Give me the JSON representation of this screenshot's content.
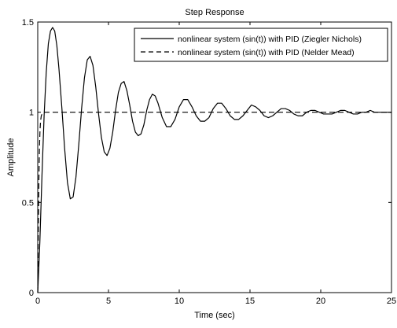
{
  "chart_data": {
    "type": "line",
    "title": "Step Response",
    "xlabel": "Time (sec)",
    "ylabel": "Amplitude",
    "xlim": [
      0,
      25
    ],
    "ylim": [
      0,
      1.5
    ],
    "xticks": [
      0,
      5,
      10,
      15,
      20,
      25
    ],
    "yticks": [
      0,
      0.5,
      1,
      1.5
    ],
    "xtick_labels": [
      "0",
      "5",
      "10",
      "15",
      "20",
      "25"
    ],
    "ytick_labels": [
      "0",
      "0.5",
      "1",
      "1.5"
    ],
    "grid": false,
    "legend_position": "top-right",
    "series": [
      {
        "name": "nonlinear system (sin(t)) with PID (Ziegler Nichols)",
        "line_style": "solid",
        "color": "#000000",
        "x": [
          0,
          0.15,
          0.3,
          0.45,
          0.6,
          0.75,
          0.9,
          1.05,
          1.2,
          1.35,
          1.5,
          1.7,
          1.9,
          2.1,
          2.3,
          2.5,
          2.7,
          2.9,
          3.1,
          3.3,
          3.5,
          3.7,
          3.9,
          4.1,
          4.3,
          4.5,
          4.7,
          4.9,
          5.1,
          5.3,
          5.5,
          5.7,
          5.9,
          6.1,
          6.3,
          6.5,
          6.7,
          6.9,
          7.1,
          7.3,
          7.5,
          7.7,
          7.9,
          8.1,
          8.3,
          8.5,
          8.8,
          9.1,
          9.4,
          9.7,
          10.0,
          10.3,
          10.6,
          10.9,
          11.2,
          11.5,
          11.8,
          12.1,
          12.4,
          12.7,
          13.0,
          13.3,
          13.6,
          13.9,
          14.2,
          14.5,
          14.8,
          15.1,
          15.4,
          15.7,
          16.0,
          16.3,
          16.6,
          16.9,
          17.2,
          17.5,
          17.8,
          18.1,
          18.4,
          18.7,
          19.0,
          19.3,
          19.6,
          19.9,
          20.2,
          20.5,
          20.8,
          21.1,
          21.4,
          21.7,
          22.0,
          22.3,
          22.6,
          22.9,
          23.2,
          23.5,
          23.8,
          24.1,
          24.4,
          24.7,
          25.0
        ],
        "y": [
          0,
          0.28,
          0.65,
          0.98,
          1.22,
          1.38,
          1.45,
          1.47,
          1.45,
          1.37,
          1.24,
          1.03,
          0.8,
          0.61,
          0.52,
          0.53,
          0.64,
          0.82,
          1.02,
          1.19,
          1.29,
          1.31,
          1.26,
          1.14,
          0.99,
          0.86,
          0.78,
          0.76,
          0.8,
          0.89,
          1.01,
          1.11,
          1.16,
          1.17,
          1.12,
          1.04,
          0.95,
          0.89,
          0.87,
          0.88,
          0.93,
          1.01,
          1.07,
          1.1,
          1.09,
          1.05,
          0.97,
          0.92,
          0.92,
          0.96,
          1.03,
          1.07,
          1.07,
          1.03,
          0.98,
          0.95,
          0.95,
          0.97,
          1.02,
          1.05,
          1.05,
          1.02,
          0.98,
          0.96,
          0.96,
          0.98,
          1.01,
          1.04,
          1.03,
          1.01,
          0.98,
          0.97,
          0.98,
          1.0,
          1.02,
          1.02,
          1.01,
          0.99,
          0.98,
          0.98,
          1.0,
          1.01,
          1.01,
          1.0,
          0.99,
          0.99,
          0.99,
          1.0,
          1.01,
          1.01,
          1.0,
          0.99,
          0.99,
          1.0,
          1.0,
          1.01,
          1.0,
          1.0,
          1.0,
          1.0,
          1.0
        ]
      },
      {
        "name": "nonlinear system (sin(t)) with PID (Nelder Mead)",
        "line_style": "dashed",
        "color": "#000000",
        "x": [
          0,
          0.04,
          0.08,
          0.12,
          0.16,
          0.2,
          0.25,
          0.3,
          0.4,
          0.6,
          1.0,
          2,
          5,
          10,
          15,
          20,
          25
        ],
        "y": [
          0,
          0.35,
          0.62,
          0.8,
          0.9,
          0.95,
          0.98,
          0.99,
          1.0,
          1.0,
          1.0,
          1.0,
          1.0,
          1.0,
          1.0,
          1.0,
          1.0
        ]
      }
    ]
  }
}
